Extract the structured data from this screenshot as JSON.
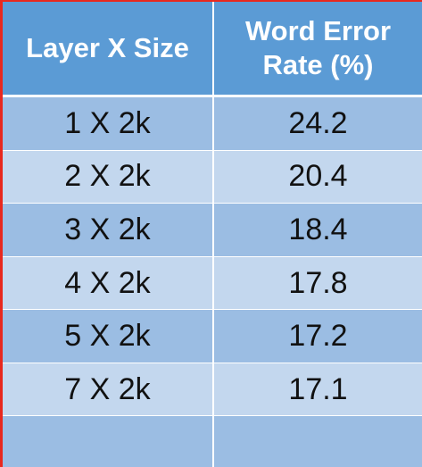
{
  "chart_data": {
    "type": "table",
    "columns": [
      "Layer X Size",
      "Word Error Rate (%)"
    ],
    "rows": [
      [
        "1 X 2k",
        "24.2"
      ],
      [
        "2 X 2k",
        "20.4"
      ],
      [
        "3 X 2k",
        "18.4"
      ],
      [
        "4 X 2k",
        "17.8"
      ],
      [
        "5 X 2k",
        "17.2"
      ],
      [
        "7 X 2k",
        "17.1"
      ],
      [
        "",
        ""
      ]
    ],
    "colors": {
      "header": "#5b9bd5",
      "row_band_dark": "#9bbde3",
      "row_band_light": "#c3d7ee",
      "edge": "#e8281e"
    }
  }
}
